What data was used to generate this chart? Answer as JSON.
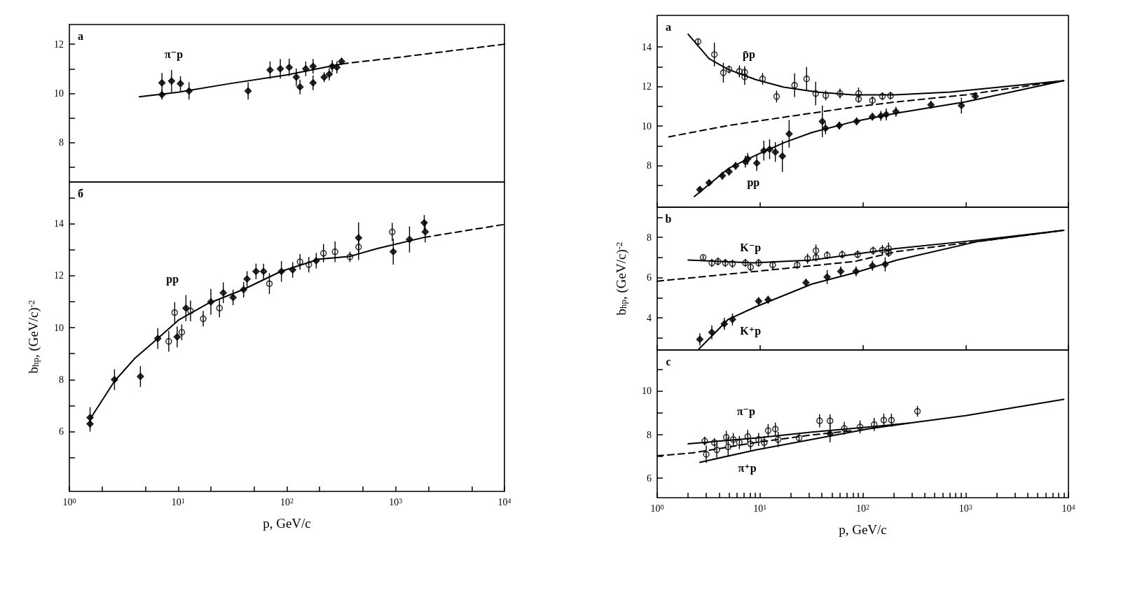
{
  "chart_data": [
    {
      "type": "scatter",
      "log": "x",
      "tick_labels": "y",
      "xlim": [
        1,
        10000
      ],
      "ylim": [
        6.4,
        12.8
      ],
      "yticks": [
        {
          "value": 7,
          "label": null
        },
        8,
        {
          "value": 9,
          "label": null
        },
        10,
        {
          "value": 11,
          "label": null
        },
        12
      ],
      "annotations": [
        "a",
        "π⁻p"
      ],
      "series": [
        {
          "type": "scatter",
          "marker": "diamond",
          "color": "#000000",
          "x": [
            7.1,
            7.1,
            8.7,
            10.5,
            12.6,
            44,
            70,
            87,
            105,
            122,
            132,
            149,
            174,
            174,
            220,
            245,
            261,
            288,
            318
          ],
          "values": [
            10.43,
            9.95,
            10.5,
            10.4,
            10.1,
            10.1,
            10.95,
            11.0,
            11.06,
            10.66,
            10.26,
            11.0,
            11.1,
            10.43,
            10.66,
            10.78,
            11.1,
            11.06,
            11.3
          ],
          "errors": [
            0.4,
            0.2,
            0.45,
            0.3,
            0.35,
            0.35,
            0.35,
            0.4,
            0.35,
            0.35,
            0.3,
            0.3,
            0.3,
            0.3,
            0.2,
            0.25,
            0.25,
            0.25,
            0.15
          ]
        },
        {
          "type": "line",
          "line_style": "solid",
          "color": "#000000",
          "x": [
            4.4,
            10,
            30,
            100,
            320
          ],
          "values": [
            9.86,
            10.05,
            10.4,
            10.75,
            11.2
          ]
        },
        {
          "type": "line",
          "line_style": "dashed",
          "color": "#000000",
          "x": [
            320,
            1000,
            10000
          ],
          "values": [
            11.2,
            11.45,
            12.0
          ]
        }
      ]
    },
    {
      "type": "scatter",
      "log": "x",
      "xlabel": "p, GeV/c",
      "ylabel": "b$_{hp}$, (GeV/c)$^{-2}$",
      "xlim": [
        1,
        10000
      ],
      "ylim": [
        3.7,
        15.6
      ],
      "xticks": [
        {
          "value": 1,
          "label": "10$^{0}$"
        },
        {
          "value": 2,
          "label": null
        },
        {
          "value": 5,
          "label": null
        },
        {
          "value": 10,
          "label": "10$^{1}$"
        },
        {
          "value": 20,
          "label": null
        },
        {
          "value": 50,
          "label": null
        },
        {
          "value": 100,
          "label": "10$^{2}$"
        },
        {
          "value": 200,
          "label": null
        },
        {
          "value": 500,
          "label": null
        },
        {
          "value": 1000,
          "label": "10$^{3}$"
        },
        {
          "value": 2000,
          "label": null
        },
        {
          "value": 5000,
          "label": null
        },
        {
          "value": 10000,
          "label": "10$^{4}$"
        }
      ],
      "yticks": [
        {
          "value": 5,
          "label": null
        },
        6,
        {
          "value": 7,
          "label": null
        },
        8,
        {
          "value": 9,
          "label": null
        },
        10,
        {
          "value": 11,
          "label": null
        },
        12,
        {
          "value": 13,
          "label": null
        },
        14,
        {
          "value": 15,
          "label": null
        }
      ],
      "annotations": [
        "б",
        "pp"
      ],
      "series": [
        {
          "type": "scatter",
          "marker": "circle",
          "color": "#000000",
          "x": [
            8.2,
            9.3,
            10.8,
            13,
            17,
            24,
            69,
            132,
            159,
            217,
            277,
            380,
            456,
            930
          ],
          "values": [
            9.47,
            10.58,
            9.82,
            10.64,
            10.34,
            10.75,
            11.69,
            12.53,
            12.42,
            12.86,
            12.92,
            12.72,
            13.1,
            13.68
          ],
          "errors": [
            0.4,
            0.4,
            0.3,
            0.4,
            0.3,
            0.35,
            0.4,
            0.3,
            0.3,
            0.35,
            0.4,
            0.2,
            0.5,
            0.35
          ]
        },
        {
          "type": "scatter",
          "marker": "diamond",
          "color": "#000000",
          "x": [
            1.55,
            1.55,
            2.6,
            4.5,
            6.5,
            9.8,
            11.8,
            20,
            26,
            32,
            40,
            43,
            52,
            61,
            89,
            113,
            186,
            456,
            950,
            1340,
            1830,
            1870
          ],
          "values": [
            6.54,
            6.3,
            8.0,
            8.12,
            9.58,
            9.64,
            10.75,
            10.99,
            11.34,
            11.16,
            11.46,
            11.87,
            12.16,
            12.16,
            12.16,
            12.22,
            12.57,
            13.45,
            12.92,
            13.39,
            14.03,
            13.68
          ],
          "errors": [
            0.4,
            0.3,
            0.4,
            0.4,
            0.4,
            0.4,
            0.5,
            0.5,
            0.4,
            0.3,
            0.3,
            0.3,
            0.3,
            0.3,
            0.4,
            0.3,
            0.3,
            0.6,
            0.5,
            0.5,
            0.3,
            0.4
          ]
        },
        {
          "type": "line",
          "line_style": "solid",
          "color": "#000000",
          "x": [
            1.55,
            2.6,
            4.0,
            6.5,
            10.1,
            18.9,
            39.5,
            88,
            197,
            380,
            680,
            1830
          ],
          "values": [
            6.48,
            7.94,
            8.82,
            9.58,
            10.29,
            10.93,
            11.46,
            12.16,
            12.63,
            12.74,
            13.04,
            13.47
          ]
        },
        {
          "type": "line",
          "line_style": "dashed",
          "color": "#000000",
          "x": [
            1830,
            10000
          ],
          "values": [
            13.47,
            13.97
          ]
        }
      ]
    },
    {
      "type": "scatter",
      "log": "x",
      "tick_labels": "y",
      "xlim": [
        1,
        10000
      ],
      "ylim": [
        5.9,
        15.6
      ],
      "xticks": [
        {
          "value": 1,
          "label": null
        },
        {
          "value": 10,
          "label": null
        },
        {
          "value": 100,
          "label": null
        },
        {
          "value": 1000,
          "label": null
        },
        {
          "value": 10000,
          "label": null
        }
      ],
      "yticks": [
        {
          "value": 7,
          "label": null
        },
        8,
        {
          "value": 9,
          "label": null
        },
        10,
        {
          "value": 11,
          "label": null
        },
        12,
        {
          "value": 13,
          "label": null
        },
        14
      ],
      "annotations": [
        "a",
        "p̄p",
        "pp"
      ],
      "series": [
        {
          "type": "scatter",
          "marker": "circle",
          "color": "#000000",
          "x": [
            2.5,
            3.6,
            4.4,
            5.0,
            6.3,
            7.1,
            7.1,
            10.6,
            14.5,
            21.7,
            28.4,
            34.8,
            43.6,
            60,
            91,
            91,
            124,
            155,
            186
          ],
          "values": [
            14.28,
            13.62,
            12.7,
            12.87,
            12.77,
            12.73,
            12.49,
            12.39,
            11.5,
            12.07,
            12.39,
            11.65,
            11.55,
            11.65,
            11.65,
            11.37,
            11.3,
            11.51,
            11.54
          ],
          "errors": [
            0.15,
            0.6,
            0.5,
            0.2,
            0.3,
            0.3,
            0.4,
            0.3,
            0.3,
            0.6,
            0.6,
            0.6,
            0.25,
            0.25,
            0.3,
            0.2,
            0.2,
            0.2,
            0.2
          ]
        },
        {
          "type": "scatter",
          "marker": "diamond",
          "color": "#000000",
          "x": [
            2.6,
            3.2,
            4.3,
            5.0,
            5.8,
            7.2,
            7.6,
            9.3,
            10.9,
            12.4,
            14.1,
            16.5,
            19.2,
            40.4,
            43.4,
            59,
            87,
            124,
            150,
            169,
            210,
            460,
            910,
            1240
          ],
          "values": [
            6.79,
            7.14,
            7.49,
            7.7,
            7.99,
            8.2,
            8.34,
            8.13,
            8.76,
            8.83,
            8.69,
            8.48,
            9.61,
            10.24,
            9.89,
            10.03,
            10.24,
            10.48,
            10.52,
            10.59,
            10.73,
            11.08,
            11.04,
            11.51
          ],
          "errors": [
            0.15,
            0.15,
            0.2,
            0.2,
            0.2,
            0.3,
            0.3,
            0.4,
            0.5,
            0.5,
            0.5,
            0.8,
            0.7,
            0.8,
            0.3,
            0.2,
            0.2,
            0.2,
            0.25,
            0.3,
            0.25,
            0.2,
            0.4,
            0.2
          ]
        },
        {
          "type": "line",
          "line_style": "solid",
          "color": "#000000",
          "x": [
            2.0,
            3.2,
            4.9,
            9.1,
            17,
            36,
            80,
            205,
            710,
            9000
          ],
          "values": [
            14.65,
            13.41,
            12.87,
            12.35,
            11.97,
            11.72,
            11.58,
            11.58,
            11.72,
            12.3
          ]
        },
        {
          "type": "line",
          "line_style": "solid",
          "color": "#000000",
          "x": [
            2.3,
            4.9,
            9.3,
            17.4,
            32,
            83,
            215,
            1000,
            9000
          ],
          "values": [
            6.44,
            7.85,
            8.55,
            9.18,
            9.68,
            10.24,
            10.66,
            11.23,
            12.3
          ]
        },
        {
          "type": "line",
          "line_style": "dashed",
          "color": "#000000",
          "x": [
            1.3,
            4.9,
            17,
            83,
            215,
            1000,
            9000
          ],
          "values": [
            9.46,
            10.03,
            10.45,
            10.97,
            11.23,
            11.58,
            12.3
          ]
        }
      ]
    },
    {
      "type": "scatter",
      "log": "x",
      "tick_labels": "y",
      "ylabel": "b$_{hp}$, (GeV/c)$^{-2}$",
      "xlim": [
        1,
        10000
      ],
      "ylim": [
        2.4,
        9.5
      ],
      "xticks": [
        {
          "value": 1,
          "label": null
        },
        {
          "value": 10,
          "label": null
        },
        {
          "value": 100,
          "label": null
        },
        {
          "value": 1000,
          "label": null
        },
        {
          "value": 10000,
          "label": null
        }
      ],
      "yticks": [
        {
          "value": 3,
          "label": null
        },
        4,
        {
          "value": 5,
          "label": null
        },
        6,
        {
          "value": 7,
          "label": null
        },
        8,
        {
          "value": 9,
          "label": null
        }
      ],
      "annotations": [
        "b",
        "K⁻p",
        "K⁺p"
      ],
      "series": [
        {
          "type": "scatter",
          "marker": "circle",
          "color": "#000000",
          "x": [
            2.8,
            3.4,
            3.9,
            4.6,
            5.4,
            7.2,
            8.1,
            9.7,
            13.3,
            23,
            29,
            35,
            35,
            45,
            63,
            89,
            126,
            155,
            178,
            178
          ],
          "values": [
            7.01,
            6.73,
            6.8,
            6.73,
            6.69,
            6.73,
            6.52,
            6.73,
            6.63,
            6.63,
            6.94,
            7.34,
            7.01,
            7.11,
            7.15,
            7.15,
            7.34,
            7.37,
            7.44,
            7.23
          ],
          "errors": [
            0.1,
            0.2,
            0.2,
            0.2,
            0.2,
            0.2,
            0.2,
            0.2,
            0.2,
            0.2,
            0.25,
            0.3,
            0.2,
            0.2,
            0.2,
            0.2,
            0.2,
            0.25,
            0.3,
            0.2
          ]
        },
        {
          "type": "scatter",
          "marker": "diamond",
          "color": "#000000",
          "x": [
            2.6,
            3.4,
            4.5,
            5.4,
            9.7,
            12.0,
            28,
            45,
            61,
            86,
            124,
            165
          ],
          "values": [
            2.93,
            3.28,
            3.7,
            3.92,
            4.83,
            4.9,
            5.75,
            6.03,
            6.31,
            6.31,
            6.59,
            6.66
          ],
          "errors": [
            0.3,
            0.35,
            0.3,
            0.3,
            0.2,
            0.2,
            0.2,
            0.35,
            0.25,
            0.25,
            0.25,
            0.35
          ]
        },
        {
          "type": "line",
          "line_style": "solid",
          "color": "#000000",
          "x": [
            2.0,
            8.6,
            32,
            205,
            1300,
            9000
          ],
          "values": [
            6.87,
            6.73,
            6.87,
            7.44,
            7.86,
            8.35
          ]
        },
        {
          "type": "line",
          "line_style": "solid",
          "color": "#000000",
          "x": [
            2.55,
            4.9,
            9.1,
            32,
            83,
            215,
            1300,
            9000
          ],
          "values": [
            2.45,
            3.92,
            4.55,
            5.68,
            6.24,
            6.87,
            7.79,
            8.35
          ]
        },
        {
          "type": "line",
          "line_style": "dashed",
          "color": "#000000",
          "x": [
            1,
            4.9,
            17,
            83,
            215,
            1300,
            9000
          ],
          "values": [
            5.82,
            6.17,
            6.45,
            6.8,
            7.3,
            7.79,
            8.35
          ]
        }
      ]
    },
    {
      "type": "scatter",
      "log": "x",
      "xlabel": "p, GeV/c",
      "xlim": [
        1,
        10000
      ],
      "ylim": [
        5.1,
        11.9
      ],
      "xticks": [
        {
          "value": 1,
          "label": "10$^{0}$"
        },
        {
          "value": 2,
          "label": null
        },
        {
          "value": 3,
          "label": null
        },
        {
          "value": 4,
          "label": null
        },
        {
          "value": 5,
          "label": null
        },
        {
          "value": 6,
          "label": null
        },
        {
          "value": 7,
          "label": null
        },
        {
          "value": 8,
          "label": null
        },
        {
          "value": 9,
          "label": null
        },
        {
          "value": 10,
          "label": "10$^{1}$"
        },
        {
          "value": 20,
          "label": null
        },
        {
          "value": 30,
          "label": null
        },
        {
          "value": 40,
          "label": null
        },
        {
          "value": 50,
          "label": null
        },
        {
          "value": 60,
          "label": null
        },
        {
          "value": 70,
          "label": null
        },
        {
          "value": 80,
          "label": null
        },
        {
          "value": 90,
          "label": null
        },
        {
          "value": 100,
          "label": "10$^{2}$"
        },
        {
          "value": 200,
          "label": null
        },
        {
          "value": 300,
          "label": null
        },
        {
          "value": 400,
          "label": null
        },
        {
          "value": 500,
          "label": null
        },
        {
          "value": 600,
          "label": null
        },
        {
          "value": 700,
          "label": null
        },
        {
          "value": 800,
          "label": null
        },
        {
          "value": 900,
          "label": null
        },
        {
          "value": 1000,
          "label": "10$^{3}$"
        },
        {
          "value": 2000,
          "label": null
        },
        {
          "value": 3000,
          "label": null
        },
        {
          "value": 4000,
          "label": null
        },
        {
          "value": 5000,
          "label": null
        },
        {
          "value": 6000,
          "label": null
        },
        {
          "value": 7000,
          "label": null
        },
        {
          "value": 8000,
          "label": null
        },
        {
          "value": 9000,
          "label": null
        },
        {
          "value": 10000,
          "label": "10$^{4}$"
        }
      ],
      "yticks": [
        6,
        {
          "value": 7,
          "label": null
        },
        8,
        {
          "value": 9,
          "label": null
        },
        10,
        {
          "value": 11,
          "label": null
        }
      ],
      "annotations": [
        "c",
        "π⁻p",
        "π⁺p"
      ],
      "series": [
        {
          "type": "scatter",
          "marker": "circle",
          "color": "#000000",
          "x": [
            2.9,
            3.6,
            4.7,
            5.5,
            7.6,
            9.7,
            12,
            14.1,
            24,
            38,
            48,
            66,
            94,
            129,
            160,
            190,
            340
          ],
          "values": [
            7.71,
            7.64,
            7.88,
            7.78,
            7.92,
            7.78,
            8.19,
            8.26,
            7.85,
            8.64,
            8.64,
            8.29,
            8.36,
            8.47,
            8.67,
            8.67,
            9.08
          ],
          "errors": [
            0.2,
            0.2,
            0.3,
            0.3,
            0.3,
            0.3,
            0.3,
            0.3,
            0.2,
            0.3,
            0.3,
            0.3,
            0.3,
            0.3,
            0.3,
            0.3,
            0.25
          ]
        },
        {
          "type": "scatter",
          "marker": "circle",
          "color": "#000000",
          "x": [
            3.0,
            3.8,
            4.9,
            6.3,
            8.1,
            11,
            15
          ],
          "values": [
            7.1,
            7.3,
            7.44,
            7.64,
            7.58,
            7.64,
            7.78
          ],
          "errors": [
            0.4,
            0.35,
            0.45,
            0.3,
            0.3,
            0.3,
            0.35
          ]
        },
        {
          "type": "scatter",
          "marker": "diamond",
          "color": "#000000",
          "x": [
            48
          ],
          "values": [
            8.05
          ],
          "errors": [
            0.4
          ]
        },
        {
          "type": "line",
          "line_style": "solid",
          "color": "#000000",
          "x": [
            2.0,
            9.1,
            32,
            110,
            280
          ],
          "values": [
            7.58,
            7.85,
            8.12,
            8.35,
            8.53
          ]
        },
        {
          "type": "line",
          "line_style": "solid",
          "color": "#000000",
          "x": [
            2.6,
            9.1,
            32,
            110,
            280,
            1000,
            9000
          ],
          "values": [
            6.73,
            7.3,
            7.78,
            8.26,
            8.53,
            8.88,
            9.63
          ]
        },
        {
          "type": "line",
          "line_style": "dashed",
          "color": "#000000",
          "x": [
            1,
            2.2,
            9.1,
            32,
            80
          ],
          "values": [
            7.03,
            7.16,
            7.64,
            7.99,
            8.19
          ]
        }
      ]
    }
  ]
}
